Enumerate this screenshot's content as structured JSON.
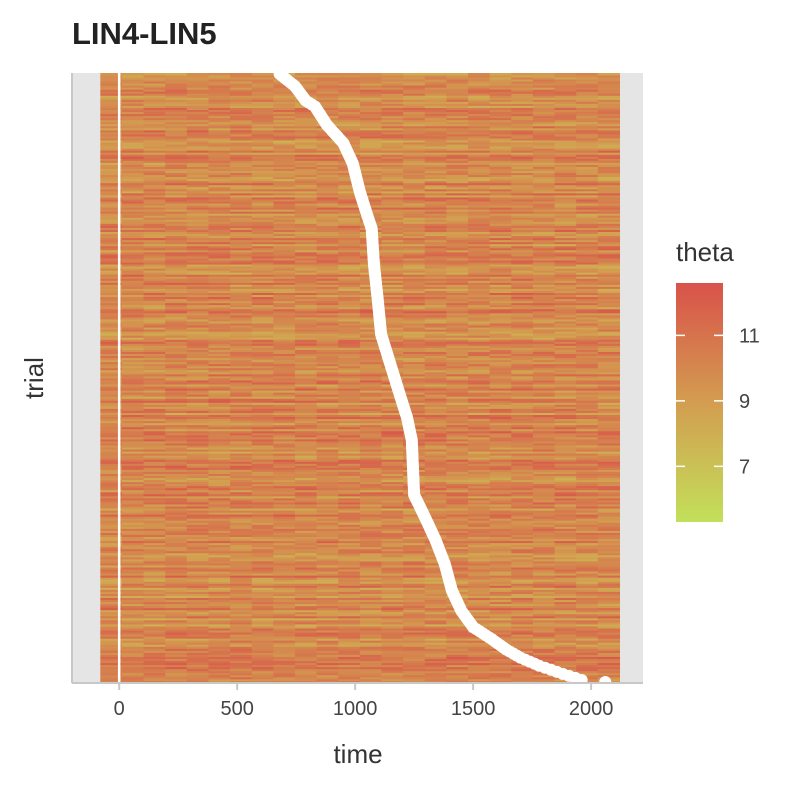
{
  "chart_data": {
    "type": "heatmap",
    "title": "LIN4-LIN5",
    "xlabel": "time",
    "ylabel": "trial",
    "xlim": [
      -200,
      2220
    ],
    "x_ticks": [
      0,
      500,
      1000,
      1500,
      2000
    ],
    "x_tick_labels": [
      "0",
      "500",
      "1000",
      "1500",
      "2000"
    ],
    "data_time_range": [
      -80,
      2120
    ],
    "y_ticks_shown": false,
    "trial_count": 300,
    "fill_variable": "theta",
    "color_scale": {
      "low_color": "#c2e05a",
      "mid_color": "#d39d50",
      "high_color": "#d9524a",
      "range": [
        5.3,
        12.6
      ],
      "breaks": [
        7,
        9,
        11
      ],
      "break_labels": [
        "7",
        "9",
        "11"
      ]
    },
    "legend_position": "right",
    "reference_line": {
      "x": 0,
      "color": "#ffffff"
    },
    "event_markers": {
      "description": "white dots marking per-trial event time, sorted so time decreases from bottom to top",
      "color": "#ffffff",
      "points": [
        {
          "trial": 0,
          "time": 680
        },
        {
          "trial": 6,
          "time": 745
        },
        {
          "trial": 13,
          "time": 790
        },
        {
          "trial": 16,
          "time": 830
        },
        {
          "trial": 25,
          "time": 880
        },
        {
          "trial": 34,
          "time": 950
        },
        {
          "trial": 44,
          "time": 990
        },
        {
          "trial": 58,
          "time": 1020
        },
        {
          "trial": 69,
          "time": 1050
        },
        {
          "trial": 76,
          "time": 1070
        },
        {
          "trial": 94,
          "time": 1080
        },
        {
          "trial": 110,
          "time": 1095
        },
        {
          "trial": 128,
          "time": 1110
        },
        {
          "trial": 143,
          "time": 1150
        },
        {
          "trial": 158,
          "time": 1190
        },
        {
          "trial": 169,
          "time": 1220
        },
        {
          "trial": 180,
          "time": 1240
        },
        {
          "trial": 207,
          "time": 1250
        },
        {
          "trial": 219,
          "time": 1300
        },
        {
          "trial": 229,
          "time": 1340
        },
        {
          "trial": 241,
          "time": 1380
        },
        {
          "trial": 254,
          "time": 1410
        },
        {
          "trial": 264,
          "time": 1450
        },
        {
          "trial": 272,
          "time": 1500
        },
        {
          "trial": 278,
          "time": 1580
        },
        {
          "trial": 283,
          "time": 1640
        },
        {
          "trial": 287,
          "time": 1700
        },
        {
          "trial": 291,
          "time": 1780
        },
        {
          "trial": 295,
          "time": 1880
        },
        {
          "trial": 298,
          "time": 1960
        },
        {
          "trial": 299,
          "time": 2060
        }
      ]
    }
  }
}
